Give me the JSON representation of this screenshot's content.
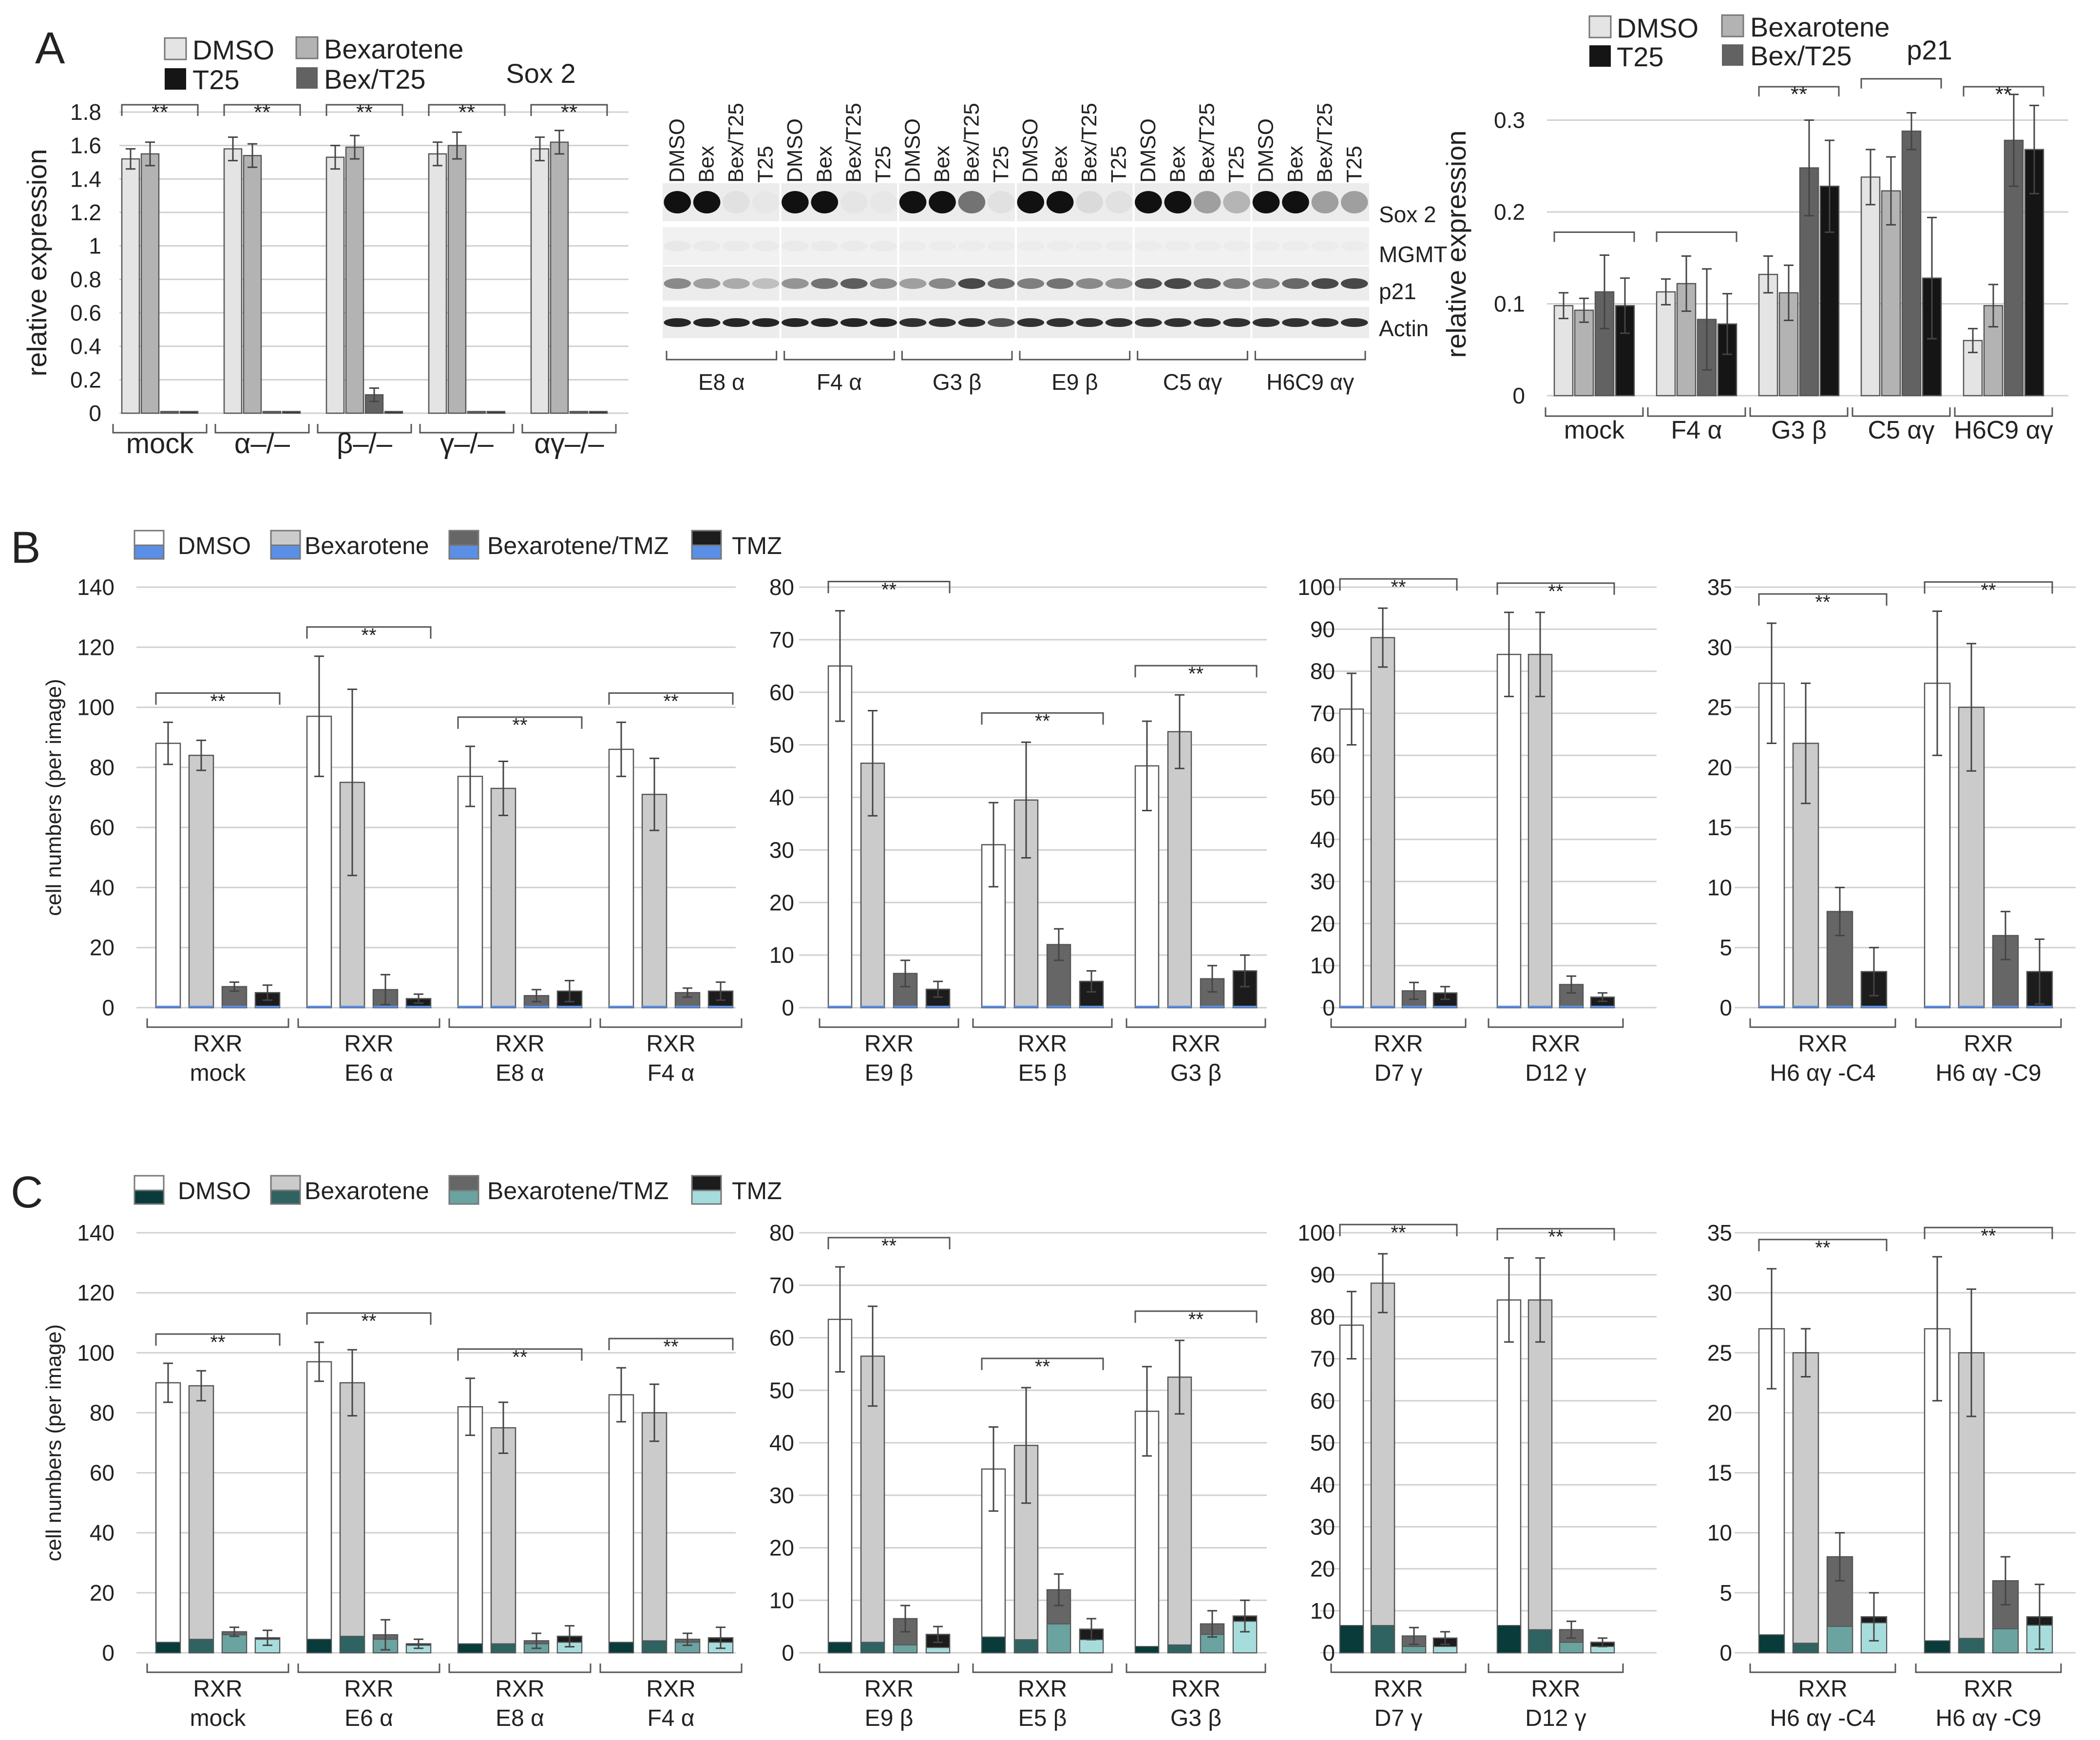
{
  "panels": {
    "A": "A",
    "B": "B",
    "C": "C"
  },
  "colors": {
    "dmso": "#e4e4e4",
    "bex": "#b3b3b3",
    "bextmz": "#626262",
    "t25": "#151515",
    "b_dmso": "#ffffff",
    "b_bex": "#cbcbcb",
    "b_bextmz": "#666666",
    "b_tmz": "#1c1c1c",
    "b_blue": "#5b8fe6",
    "c_dmso_base": "#083b3a",
    "c_bex_base": "#2f6361",
    "c_bextmz_base": "#6aa3a0",
    "c_tmz_base": "#a7dcdc",
    "grid": "#d0d0d0",
    "axis": "#555555"
  },
  "sig": "**",
  "legend_A": {
    "dmso": "DMSO",
    "t25": "T25",
    "bex": "Bexarotene",
    "bextmz": "Bex/T25"
  },
  "legend_B": {
    "dmso": "DMSO",
    "bex": "Bexarotene",
    "bextmz": "Bexarotene/TMZ",
    "tmz": "TMZ"
  },
  "blot": {
    "lanes": [
      "DMSO",
      "Bex",
      "Bex/T25",
      "T25"
    ],
    "rows": [
      "Sox 2",
      "MGMT",
      "p21",
      "Actin"
    ],
    "groups": [
      "E8 α",
      "F4 α",
      "G3 β",
      "E9 β",
      "C5 αγ",
      "H6C9 αγ"
    ]
  },
  "chart_data": [
    {
      "id": "A-sox2",
      "type": "bar",
      "title": "Sox 2",
      "ylabel": "relative expression",
      "ylim": [
        0,
        1.8
      ],
      "yticks": [
        0,
        0.2,
        0.4,
        0.6,
        0.8,
        1.0,
        1.2,
        1.4,
        1.6,
        1.8
      ],
      "categories": [
        "mock",
        "α–/–",
        "β–/–",
        "γ–/–",
        "αγ–/–"
      ],
      "series": [
        {
          "name": "DMSO",
          "values": [
            1.52,
            1.58,
            1.53,
            1.55,
            1.58
          ],
          "errors": [
            0.06,
            0.07,
            0.07,
            0.07,
            0.07
          ]
        },
        {
          "name": "Bexarotene",
          "values": [
            1.55,
            1.54,
            1.59,
            1.6,
            1.62
          ],
          "errors": [
            0.07,
            0.07,
            0.07,
            0.08,
            0.07
          ]
        },
        {
          "name": "Bex/T25",
          "values": [
            0.01,
            0.01,
            0.11,
            0.01,
            0.01
          ],
          "errors": [
            0,
            0,
            0.04,
            0,
            0
          ]
        },
        {
          "name": "T25",
          "values": [
            0.01,
            0.01,
            0.01,
            0.01,
            0.01
          ],
          "errors": [
            0,
            0,
            0,
            0,
            0
          ]
        }
      ],
      "significance": [
        0,
        1,
        2,
        3,
        4
      ]
    },
    {
      "id": "A-p21",
      "type": "bar",
      "title": "p21",
      "ylabel": "relative expression",
      "ylim": [
        0,
        0.33
      ],
      "yticks": [
        0,
        0.1,
        0.2,
        0.3
      ],
      "ytick_labels": [
        "0",
        "0.1",
        "0.2",
        "0.3"
      ],
      "categories": [
        "mock",
        "F4 α",
        "G3 β",
        "C5 αγ",
        "H6C9 αγ"
      ],
      "series": [
        {
          "name": "DMSO",
          "values": [
            0.098,
            0.113,
            0.132,
            0.238,
            0.06
          ],
          "errors": [
            0.014,
            0.014,
            0.02,
            0.03,
            0.013
          ]
        },
        {
          "name": "Bexarotene",
          "values": [
            0.093,
            0.122,
            0.112,
            0.223,
            0.098
          ],
          "errors": [
            0.013,
            0.03,
            0.03,
            0.037,
            0.023
          ]
        },
        {
          "name": "Bex/T25",
          "values": [
            0.113,
            0.083,
            0.248,
            0.288,
            0.278
          ],
          "errors": [
            0.04,
            0.055,
            0.052,
            0.02,
            0.05
          ]
        },
        {
          "name": "T25",
          "values": [
            0.098,
            0.078,
            0.228,
            0.128,
            0.268
          ],
          "errors": [
            0.03,
            0.033,
            0.05,
            0.066,
            0.048
          ]
        }
      ],
      "significance": [
        2,
        4
      ],
      "brackets_plain": [
        0,
        1,
        3
      ]
    },
    {
      "id": "B-alpha",
      "type": "bar",
      "ylabel": "cell numbers (per image)",
      "ylim": [
        0,
        140
      ],
      "yticks": [
        0,
        20,
        40,
        60,
        80,
        100,
        120,
        140
      ],
      "categories": [
        [
          "RXR",
          "mock"
        ],
        [
          "RXR",
          "E6 α"
        ],
        [
          "RXR",
          "E8 α"
        ],
        [
          "RXR",
          "F4 α"
        ]
      ],
      "series": [
        {
          "name": "DMSO",
          "values": [
            88,
            97,
            77,
            86
          ],
          "errors": [
            7,
            20,
            10,
            9
          ]
        },
        {
          "name": "Bexarotene",
          "values": [
            84,
            75,
            73,
            71
          ],
          "errors": [
            5,
            31,
            9,
            12
          ]
        },
        {
          "name": "Bexarotene/TMZ",
          "values": [
            7,
            6,
            4,
            5
          ],
          "errors": [
            1.5,
            5,
            2,
            1.5
          ]
        },
        {
          "name": "TMZ",
          "values": [
            5,
            3,
            5.5,
            5.5
          ],
          "errors": [
            2.5,
            1.5,
            3.5,
            3
          ]
        }
      ],
      "significance": [
        0,
        1,
        2,
        3
      ]
    },
    {
      "id": "B-beta",
      "type": "bar",
      "ylim": [
        0,
        80
      ],
      "yticks": [
        0,
        10,
        20,
        30,
        40,
        50,
        60,
        70,
        80
      ],
      "categories": [
        [
          "RXR",
          "E9 β"
        ],
        [
          "RXR",
          "E5 β"
        ],
        [
          "RXR",
          "G3 β"
        ]
      ],
      "series": [
        {
          "name": "DMSO",
          "values": [
            65,
            31,
            46
          ],
          "errors": [
            10.5,
            8,
            8.5
          ]
        },
        {
          "name": "Bexarotene",
          "values": [
            46.5,
            39.5,
            52.5
          ],
          "errors": [
            10,
            11,
            7
          ]
        },
        {
          "name": "Bexarotene/TMZ",
          "values": [
            6.5,
            12,
            5.5
          ],
          "errors": [
            2.5,
            3,
            2.5
          ]
        },
        {
          "name": "TMZ",
          "values": [
            3.5,
            5,
            7
          ],
          "errors": [
            1.5,
            2,
            3
          ]
        }
      ],
      "significance": [
        0,
        1,
        2
      ]
    },
    {
      "id": "B-gamma",
      "type": "bar",
      "ylim": [
        0,
        100
      ],
      "yticks": [
        0,
        10,
        20,
        30,
        40,
        50,
        60,
        70,
        80,
        90,
        100
      ],
      "categories": [
        [
          "RXR",
          "D7 γ"
        ],
        [
          "RXR",
          "D12 γ"
        ]
      ],
      "series": [
        {
          "name": "DMSO",
          "values": [
            71,
            84
          ],
          "errors": [
            8.5,
            10
          ]
        },
        {
          "name": "Bexarotene",
          "values": [
            88,
            84
          ],
          "errors": [
            7,
            10
          ]
        },
        {
          "name": "Bexarotene/TMZ",
          "values": [
            4,
            5.5
          ],
          "errors": [
            2,
            2
          ]
        },
        {
          "name": "TMZ",
          "values": [
            3.5,
            2.5
          ],
          "errors": [
            1.5,
            1
          ]
        }
      ],
      "significance": [
        0,
        1
      ]
    },
    {
      "id": "B-agamma",
      "type": "bar",
      "ylim": [
        0,
        35
      ],
      "yticks": [
        0,
        5,
        10,
        15,
        20,
        25,
        30,
        35
      ],
      "categories": [
        [
          "RXR",
          "H6 αγ -C4"
        ],
        [
          "RXR",
          "H6 αγ -C9"
        ]
      ],
      "series": [
        {
          "name": "DMSO",
          "values": [
            27,
            27
          ],
          "errors": [
            5,
            6
          ]
        },
        {
          "name": "Bexarotene",
          "values": [
            22,
            25
          ],
          "errors": [
            5,
            5.3
          ]
        },
        {
          "name": "Bexarotene/TMZ",
          "values": [
            8,
            6
          ],
          "errors": [
            2,
            2
          ]
        },
        {
          "name": "TMZ",
          "values": [
            3,
            3
          ],
          "errors": [
            2,
            2.7
          ]
        }
      ],
      "significance": [
        0,
        1
      ]
    },
    {
      "id": "C-alpha",
      "type": "bar",
      "ylabel": "cell numbers (per image)",
      "ylim": [
        0,
        140
      ],
      "yticks": [
        0,
        20,
        40,
        60,
        80,
        100,
        120,
        140
      ],
      "categories": [
        [
          "RXR",
          "mock"
        ],
        [
          "RXR",
          "E6 α"
        ],
        [
          "RXR",
          "E8 α"
        ],
        [
          "RXR",
          "F4 α"
        ]
      ],
      "series": [
        {
          "name": "DMSO",
          "values": [
            90,
            97,
            82,
            86
          ],
          "errors": [
            6.5,
            6.5,
            9.5,
            9
          ],
          "base": [
            3.5,
            4.5,
            3,
            3.5
          ]
        },
        {
          "name": "Bexarotene",
          "values": [
            89,
            90,
            75,
            80
          ],
          "errors": [
            5,
            11,
            8.5,
            9.5
          ],
          "base": [
            4.5,
            5.5,
            3,
            4
          ]
        },
        {
          "name": "Bexarotene/TMZ",
          "values": [
            7,
            6,
            4,
            4.5
          ],
          "errors": [
            1.5,
            5,
            2.5,
            2
          ],
          "base": [
            6,
            4.5,
            3,
            3.5
          ]
        },
        {
          "name": "TMZ",
          "values": [
            5,
            3,
            5.5,
            5
          ],
          "errors": [
            2.5,
            1.5,
            3.5,
            3.5
          ],
          "base": [
            4.5,
            2.5,
            3.5,
            3.5
          ]
        }
      ],
      "significance": [
        0,
        1,
        2,
        3
      ]
    },
    {
      "id": "C-beta",
      "type": "bar",
      "ylim": [
        0,
        80
      ],
      "yticks": [
        0,
        10,
        20,
        30,
        40,
        50,
        60,
        70,
        80
      ],
      "categories": [
        [
          "RXR",
          "E9 β"
        ],
        [
          "RXR",
          "E5 β"
        ],
        [
          "RXR",
          "G3 β"
        ]
      ],
      "series": [
        {
          "name": "DMSO",
          "values": [
            63.5,
            35,
            46
          ],
          "errors": [
            10,
            8,
            8.5
          ],
          "base": [
            2,
            3,
            1.2
          ]
        },
        {
          "name": "Bexarotene",
          "values": [
            56.5,
            39.5,
            52.5
          ],
          "errors": [
            9.5,
            11,
            7
          ],
          "base": [
            2,
            2.5,
            1.5
          ]
        },
        {
          "name": "Bexarotene/TMZ",
          "values": [
            6.5,
            12,
            5.5
          ],
          "errors": [
            2.5,
            3,
            2.5
          ],
          "base": [
            1.5,
            5.5,
            3.5
          ]
        },
        {
          "name": "TMZ",
          "values": [
            3.5,
            4.5,
            7
          ],
          "errors": [
            1.5,
            2,
            3
          ],
          "base": [
            1,
            2.5,
            6
          ]
        }
      ],
      "significance": [
        0,
        1,
        2
      ]
    },
    {
      "id": "C-gamma",
      "type": "bar",
      "ylim": [
        0,
        100
      ],
      "yticks": [
        0,
        10,
        20,
        30,
        40,
        50,
        60,
        70,
        80,
        90,
        100
      ],
      "categories": [
        [
          "RXR",
          "D7 γ"
        ],
        [
          "RXR",
          "D12 γ"
        ]
      ],
      "series": [
        {
          "name": "DMSO",
          "values": [
            78,
            84
          ],
          "errors": [
            8,
            10
          ],
          "base": [
            6.5,
            6.5
          ]
        },
        {
          "name": "Bexarotene",
          "values": [
            88,
            84
          ],
          "errors": [
            7,
            10
          ],
          "base": [
            6.5,
            5.5
          ]
        },
        {
          "name": "Bexarotene/TMZ",
          "values": [
            4,
            5.5
          ],
          "errors": [
            2,
            2
          ],
          "base": [
            1.5,
            2.5
          ]
        },
        {
          "name": "TMZ",
          "values": [
            3.5,
            2.5
          ],
          "errors": [
            1.5,
            1
          ],
          "base": [
            1.5,
            1.5
          ]
        }
      ],
      "significance": [
        0,
        1
      ]
    },
    {
      "id": "C-agamma",
      "type": "bar",
      "ylim": [
        0,
        35
      ],
      "yticks": [
        0,
        5,
        10,
        15,
        20,
        25,
        30,
        35
      ],
      "categories": [
        [
          "RXR",
          "H6 αγ -C4"
        ],
        [
          "RXR",
          "H6 αγ -C9"
        ]
      ],
      "series": [
        {
          "name": "DMSO",
          "values": [
            27,
            27
          ],
          "errors": [
            5,
            6
          ],
          "base": [
            1.5,
            1
          ]
        },
        {
          "name": "Bexarotene",
          "values": [
            25,
            25
          ],
          "errors": [
            2,
            5.3
          ],
          "base": [
            0.8,
            1.2
          ]
        },
        {
          "name": "Bexarotene/TMZ",
          "values": [
            8,
            6
          ],
          "errors": [
            2,
            2
          ],
          "base": [
            2.2,
            2
          ]
        },
        {
          "name": "TMZ",
          "values": [
            3,
            3
          ],
          "errors": [
            2,
            2.7
          ],
          "base": [
            2.5,
            2.3
          ]
        }
      ],
      "significance": [
        0,
        1
      ]
    }
  ]
}
